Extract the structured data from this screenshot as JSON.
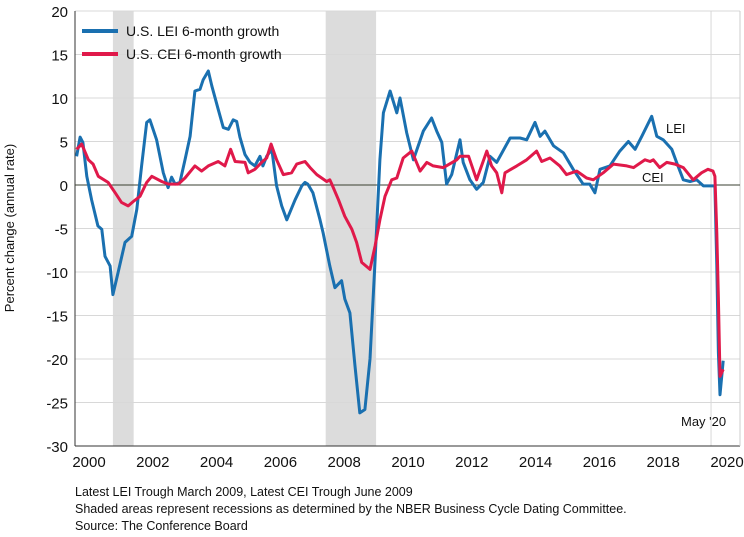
{
  "chart_data": {
    "type": "line",
    "title": "",
    "xlabel": "",
    "ylabel": "Percent change (annual rate)",
    "ylim": [
      -30,
      20
    ],
    "xlim": [
      2000,
      2021
    ],
    "yticks": [
      "20",
      "15",
      "10",
      "5",
      "0",
      "-5",
      "-10",
      "-15",
      "-20",
      "-25",
      "-30"
    ],
    "xticks": [
      "2000",
      "2002",
      "2004",
      "2006",
      "2008",
      "2010",
      "2012",
      "2014",
      "2016",
      "2018",
      "2020"
    ],
    "grid": true,
    "legend_position": "top-left",
    "recessions": [
      [
        2001.25,
        2001.9
      ],
      [
        2007.92,
        2009.5
      ]
    ],
    "annotations": {
      "lei_label": "LEI",
      "cei_label": "CEI",
      "end_label": "May '20"
    },
    "series": [
      {
        "name": "U.S. LEI 6-month growth",
        "short": "LEI",
        "color": "#1a70b0",
        "points": [
          [
            2000.11,
            3.3
          ],
          [
            2000.22,
            5.5
          ],
          [
            2000.31,
            4.9
          ],
          [
            2000.43,
            1.0
          ],
          [
            2000.58,
            -1.7
          ],
          [
            2000.78,
            -4.7
          ],
          [
            2000.9,
            -5.1
          ],
          [
            2001.0,
            -8.2
          ],
          [
            2001.16,
            -9.3
          ],
          [
            2001.25,
            -12.6
          ],
          [
            2001.41,
            -10.1
          ],
          [
            2001.63,
            -6.6
          ],
          [
            2001.84,
            -5.9
          ],
          [
            2002.0,
            -2.8
          ],
          [
            2002.15,
            2.2
          ],
          [
            2002.31,
            7.2
          ],
          [
            2002.41,
            7.5
          ],
          [
            2002.62,
            5.2
          ],
          [
            2002.83,
            1.4
          ],
          [
            2002.98,
            -0.3
          ],
          [
            2003.09,
            0.9
          ],
          [
            2003.2,
            0.1
          ],
          [
            2003.35,
            0.3
          ],
          [
            2003.51,
            2.9
          ],
          [
            2003.67,
            5.6
          ],
          [
            2003.82,
            10.8
          ],
          [
            2003.98,
            11.0
          ],
          [
            2004.08,
            12.1
          ],
          [
            2004.24,
            13.1
          ],
          [
            2004.35,
            11.4
          ],
          [
            2004.55,
            8.7
          ],
          [
            2004.71,
            6.6
          ],
          [
            2004.87,
            6.4
          ],
          [
            2005.02,
            7.5
          ],
          [
            2005.13,
            7.3
          ],
          [
            2005.23,
            5.5
          ],
          [
            2005.39,
            3.5
          ],
          [
            2005.55,
            2.6
          ],
          [
            2005.7,
            2.2
          ],
          [
            2005.86,
            3.3
          ],
          [
            2005.95,
            2.2
          ],
          [
            2006.07,
            3.3
          ],
          [
            2006.23,
            4.1
          ],
          [
            2006.38,
            -0.1
          ],
          [
            2006.54,
            -2.4
          ],
          [
            2006.7,
            -4.0
          ],
          [
            2006.96,
            -1.7
          ],
          [
            2007.17,
            -0.1
          ],
          [
            2007.27,
            0.3
          ],
          [
            2007.36,
            0.1
          ],
          [
            2007.52,
            -0.9
          ],
          [
            2007.74,
            -4.0
          ],
          [
            2007.84,
            -5.5
          ],
          [
            2008.05,
            -9.3
          ],
          [
            2008.21,
            -11.8
          ],
          [
            2008.42,
            -11.0
          ],
          [
            2008.52,
            -13.1
          ],
          [
            2008.68,
            -14.7
          ],
          [
            2008.84,
            -20.8
          ],
          [
            2008.99,
            -26.2
          ],
          [
            2009.15,
            -25.8
          ],
          [
            2009.31,
            -20.0
          ],
          [
            2009.47,
            -8.6
          ],
          [
            2009.62,
            2.9
          ],
          [
            2009.73,
            8.3
          ],
          [
            2009.94,
            10.8
          ],
          [
            2010.15,
            8.3
          ],
          [
            2010.25,
            10.0
          ],
          [
            2010.46,
            6.0
          ],
          [
            2010.67,
            2.9
          ],
          [
            2010.98,
            6.2
          ],
          [
            2011.24,
            7.7
          ],
          [
            2011.4,
            6.2
          ],
          [
            2011.56,
            4.9
          ],
          [
            2011.71,
            0.1
          ],
          [
            2011.87,
            1.2
          ],
          [
            2012.13,
            5.2
          ],
          [
            2012.23,
            2.6
          ],
          [
            2012.44,
            0.6
          ],
          [
            2012.65,
            -0.5
          ],
          [
            2012.86,
            0.3
          ],
          [
            2013.07,
            3.3
          ],
          [
            2013.28,
            2.6
          ],
          [
            2013.7,
            5.4
          ],
          [
            2014.01,
            5.4
          ],
          [
            2014.22,
            5.2
          ],
          [
            2014.48,
            7.2
          ],
          [
            2014.64,
            5.6
          ],
          [
            2014.79,
            6.2
          ],
          [
            2015.06,
            4.5
          ],
          [
            2015.37,
            3.7
          ],
          [
            2015.68,
            1.8
          ],
          [
            2015.99,
            0.1
          ],
          [
            2016.2,
            0.1
          ],
          [
            2016.36,
            -0.9
          ],
          [
            2016.52,
            1.8
          ],
          [
            2016.83,
            2.2
          ],
          [
            2017.14,
            3.9
          ],
          [
            2017.41,
            5.0
          ],
          [
            2017.62,
            4.1
          ],
          [
            2017.83,
            5.6
          ],
          [
            2018.14,
            7.9
          ],
          [
            2018.3,
            5.6
          ],
          [
            2018.5,
            5.2
          ],
          [
            2018.77,
            4.1
          ],
          [
            2018.92,
            2.6
          ],
          [
            2019.13,
            0.6
          ],
          [
            2019.34,
            0.4
          ],
          [
            2019.55,
            0.6
          ],
          [
            2019.76,
            -0.1
          ],
          [
            2020.02,
            -0.1
          ],
          [
            2020.12,
            -0.1
          ],
          [
            2020.18,
            -9.3
          ],
          [
            2020.23,
            -19.3
          ],
          [
            2020.28,
            -24.1
          ],
          [
            2020.38,
            -20.2
          ]
        ]
      },
      {
        "name": "U.S. CEI 6-month growth",
        "short": "CEI",
        "color": "#e0194a",
        "points": [
          [
            2000.11,
            4.1
          ],
          [
            2000.27,
            4.7
          ],
          [
            2000.48,
            2.9
          ],
          [
            2000.63,
            2.4
          ],
          [
            2000.79,
            1.0
          ],
          [
            2001.1,
            0.3
          ],
          [
            2001.32,
            -0.9
          ],
          [
            2001.52,
            -2.0
          ],
          [
            2001.73,
            -2.4
          ],
          [
            2001.89,
            -1.9
          ],
          [
            2002.1,
            -1.3
          ],
          [
            2002.31,
            0.3
          ],
          [
            2002.47,
            1.0
          ],
          [
            2002.78,
            0.4
          ],
          [
            2002.99,
            0.1
          ],
          [
            2003.3,
            0.1
          ],
          [
            2003.51,
            0.8
          ],
          [
            2003.82,
            2.2
          ],
          [
            2004.03,
            1.6
          ],
          [
            2004.24,
            2.2
          ],
          [
            2004.55,
            2.7
          ],
          [
            2004.76,
            2.2
          ],
          [
            2004.94,
            4.1
          ],
          [
            2005.08,
            2.7
          ],
          [
            2005.39,
            2.6
          ],
          [
            2005.49,
            1.4
          ],
          [
            2005.7,
            1.8
          ],
          [
            2005.91,
            2.6
          ],
          [
            2006.07,
            3.1
          ],
          [
            2006.21,
            4.7
          ],
          [
            2006.38,
            2.9
          ],
          [
            2006.59,
            1.2
          ],
          [
            2006.85,
            1.4
          ],
          [
            2007.01,
            2.4
          ],
          [
            2007.27,
            2.7
          ],
          [
            2007.43,
            2.0
          ],
          [
            2007.64,
            1.2
          ],
          [
            2007.95,
            0.4
          ],
          [
            2008.05,
            0.6
          ],
          [
            2008.11,
            0.1
          ],
          [
            2008.32,
            -1.7
          ],
          [
            2008.52,
            -3.6
          ],
          [
            2008.74,
            -5.1
          ],
          [
            2008.89,
            -6.6
          ],
          [
            2009.05,
            -8.9
          ],
          [
            2009.31,
            -9.7
          ],
          [
            2009.47,
            -7.0
          ],
          [
            2009.62,
            -4.0
          ],
          [
            2009.78,
            -1.3
          ],
          [
            2009.99,
            0.6
          ],
          [
            2010.15,
            0.8
          ],
          [
            2010.35,
            3.1
          ],
          [
            2010.62,
            3.9
          ],
          [
            2010.88,
            1.6
          ],
          [
            2011.09,
            2.6
          ],
          [
            2011.29,
            2.2
          ],
          [
            2011.61,
            2.0
          ],
          [
            2012.03,
            2.9
          ],
          [
            2012.13,
            3.3
          ],
          [
            2012.4,
            3.3
          ],
          [
            2012.65,
            0.6
          ],
          [
            2012.97,
            3.9
          ],
          [
            2013.12,
            2.2
          ],
          [
            2013.28,
            1.4
          ],
          [
            2013.44,
            -0.9
          ],
          [
            2013.54,
            1.4
          ],
          [
            2013.91,
            2.2
          ],
          [
            2014.22,
            2.9
          ],
          [
            2014.53,
            3.9
          ],
          [
            2014.69,
            2.7
          ],
          [
            2014.95,
            3.1
          ],
          [
            2015.26,
            2.2
          ],
          [
            2015.47,
            1.2
          ],
          [
            2015.79,
            1.6
          ],
          [
            2016.1,
            0.8
          ],
          [
            2016.31,
            0.6
          ],
          [
            2016.62,
            1.4
          ],
          [
            2016.94,
            2.4
          ],
          [
            2017.36,
            2.2
          ],
          [
            2017.57,
            2.0
          ],
          [
            2017.93,
            2.9
          ],
          [
            2018.09,
            2.7
          ],
          [
            2018.19,
            2.9
          ],
          [
            2018.39,
            2.0
          ],
          [
            2018.61,
            2.6
          ],
          [
            2018.87,
            2.4
          ],
          [
            2019.13,
            2.0
          ],
          [
            2019.44,
            0.6
          ],
          [
            2019.7,
            1.4
          ],
          [
            2019.9,
            1.8
          ],
          [
            2020.06,
            1.6
          ],
          [
            2020.12,
            1.0
          ],
          [
            2020.18,
            -5.5
          ],
          [
            2020.23,
            -13.1
          ],
          [
            2020.28,
            -22.0
          ],
          [
            2020.38,
            -21.2
          ]
        ]
      }
    ]
  },
  "notes": {
    "line1": "Latest LEI Trough March 2009, Latest CEI Trough June 2009",
    "line2": "Shaded areas represent recessions as determined by the NBER Business Cycle Dating Committee.",
    "line3": "Source: The Conference Board"
  }
}
